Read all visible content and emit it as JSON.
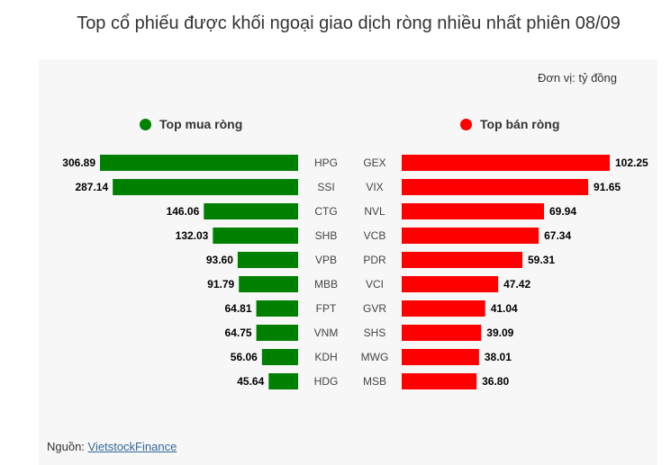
{
  "title": "Top cổ phiếu được khối ngoại giao dịch ròng nhiều nhất phiên 08/09",
  "unit": "Đơn vị: tỷ đồng",
  "source_label": "Nguồn:",
  "source_link": "VietstockFinance",
  "colors": {
    "buy": "#008000",
    "sell": "#ff0000",
    "panel": "#f7f7f7"
  },
  "chart_data": {
    "type": "bar",
    "title": "Top cổ phiếu được khối ngoại giao dịch ròng nhiều nhất phiên 08/09",
    "unit": "Đơn vị: tỷ đồng",
    "series": [
      {
        "name": "Top mua ròng",
        "color": "#008000",
        "categories": [
          "HPG",
          "SSI",
          "CTG",
          "SHB",
          "VPB",
          "MBB",
          "FPT",
          "VNM",
          "KDH",
          "HDG"
        ],
        "values": [
          306.89,
          287.14,
          146.06,
          132.03,
          93.6,
          91.79,
          64.81,
          64.75,
          56.06,
          45.64
        ],
        "labels": [
          "306.89",
          "287.14",
          "146.06",
          "132.03",
          "93.60",
          "91.79",
          "64.81",
          "64.75",
          "56.06",
          "45.64"
        ]
      },
      {
        "name": "Top bán ròng",
        "color": "#ff0000",
        "categories": [
          "GEX",
          "VIX",
          "NVL",
          "VCB",
          "PDR",
          "VCI",
          "GVR",
          "SHS",
          "MWG",
          "MSB"
        ],
        "values": [
          102.25,
          91.65,
          69.94,
          67.34,
          59.31,
          47.42,
          41.04,
          39.09,
          38.01,
          36.8
        ],
        "labels": [
          "102.25",
          "91.65",
          "69.94",
          "67.34",
          "59.31",
          "47.42",
          "41.04",
          "39.09",
          "38.01",
          "36.80"
        ]
      }
    ]
  }
}
